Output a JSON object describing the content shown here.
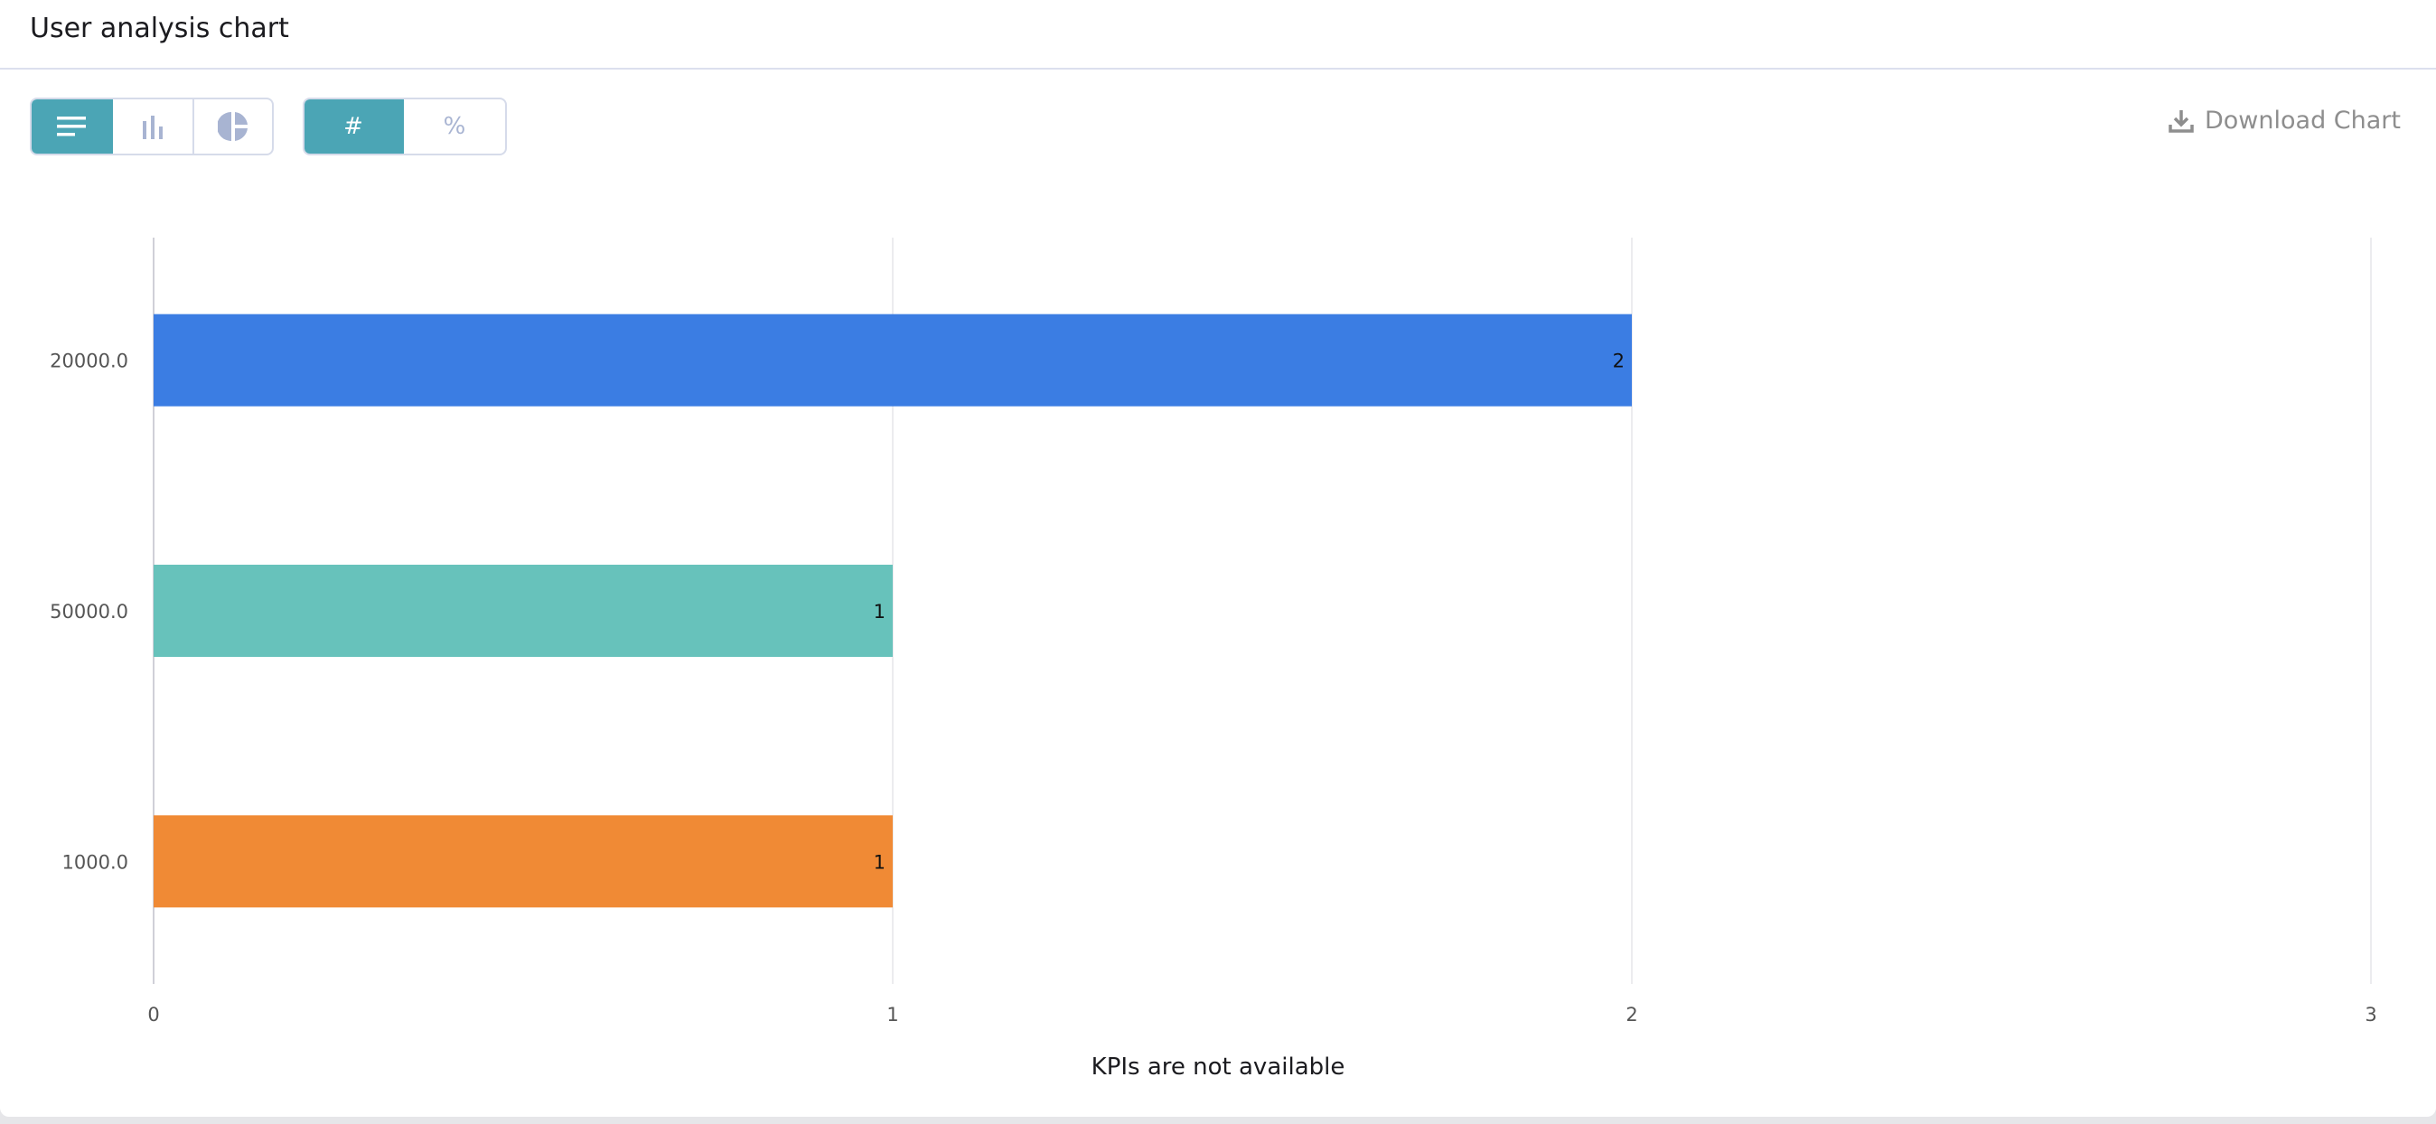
{
  "header": {
    "title": "User analysis chart"
  },
  "toolbar": {
    "chart_types": [
      {
        "icon": "horizontal-bar-icon",
        "active": true
      },
      {
        "icon": "vertical-bar-icon",
        "active": false
      },
      {
        "icon": "pie-icon",
        "active": false
      }
    ],
    "value_modes": [
      {
        "label": "#",
        "active": true
      },
      {
        "label": "%",
        "active": false
      }
    ],
    "download_label": "Download Chart"
  },
  "colors": {
    "accent": "#4ba5b5"
  },
  "chart_data": {
    "type": "bar",
    "orientation": "horizontal",
    "categories": [
      "20000.0",
      "50000.0",
      "1000.0"
    ],
    "values": [
      2,
      1,
      1
    ],
    "colors": [
      "#3b7de3",
      "#67c2bb",
      "#f08a35"
    ],
    "data_labels": [
      "2",
      "1",
      "1"
    ],
    "xlim": [
      0,
      3
    ],
    "x_ticks": [
      "0",
      "1",
      "2",
      "3"
    ],
    "grid": true,
    "title": "",
    "xlabel": "",
    "ylabel": ""
  },
  "footer": {
    "kpi_message": "KPIs are not available"
  }
}
